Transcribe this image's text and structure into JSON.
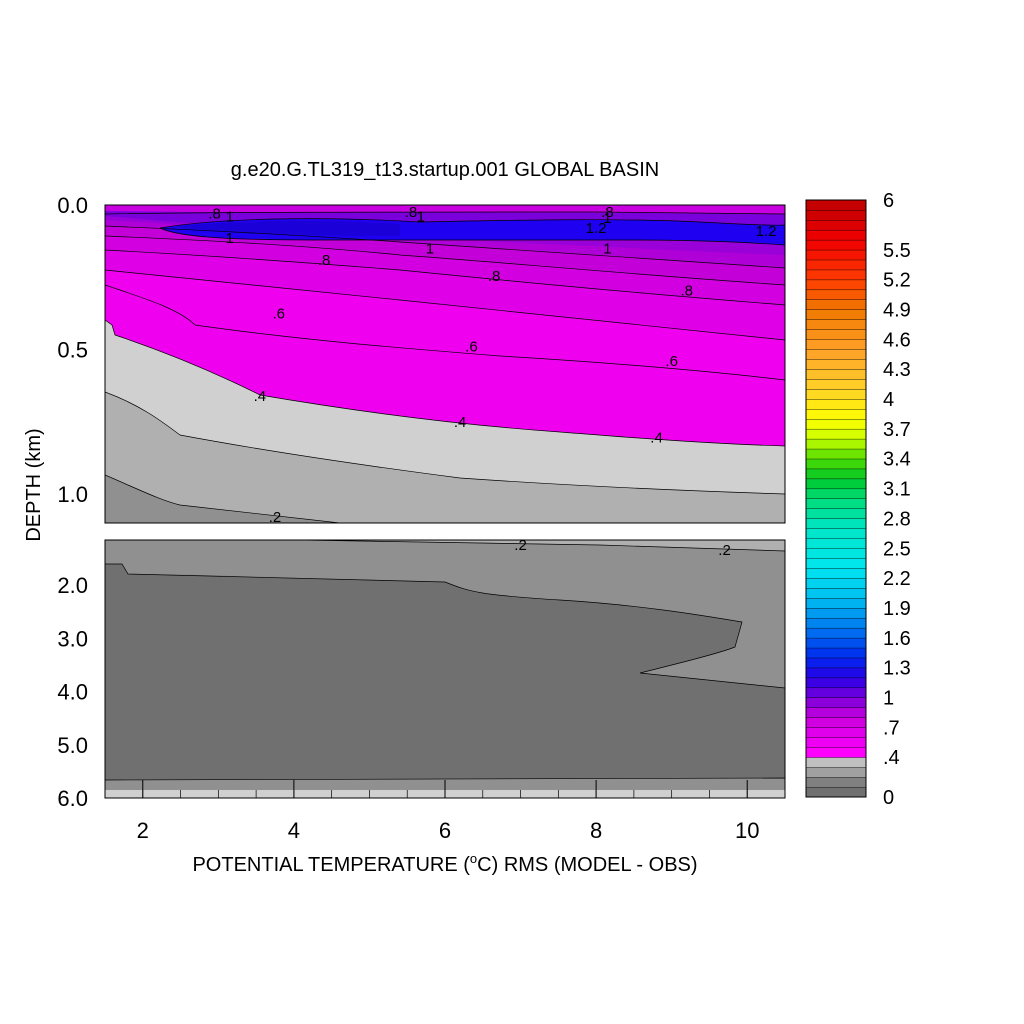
{
  "chart_data": {
    "type": "contour",
    "title": "g.e20.G.TL319_t13.startup.001 GLOBAL BASIN",
    "xlabel_pre": "POTENTIAL TEMPERATURE (",
    "xlabel_sup": "o",
    "xlabel_post": "C) RMS (MODEL - OBS)",
    "ylabel": "DEPTH (km)",
    "x_range": [
      1.5,
      10.5
    ],
    "x_ticks": [
      "2",
      "4",
      "6",
      "8",
      "10"
    ],
    "upper_panel": {
      "depth_range_km": [
        0.0,
        1.1
      ],
      "y_ticks": [
        "0.0",
        "0.5",
        "1.0"
      ],
      "contour_labels": [
        {
          "text": ".8",
          "x": 2.95,
          "d": 0.03
        },
        {
          "text": "1",
          "x": 3.15,
          "d": 0.04
        },
        {
          "text": ".8",
          "x": 5.55,
          "d": 0.025
        },
        {
          "text": "1",
          "x": 5.68,
          "d": 0.04
        },
        {
          "text": ".8",
          "x": 8.15,
          "d": 0.025
        },
        {
          "text": "1",
          "x": 8.15,
          "d": 0.045
        },
        {
          "text": "1.2",
          "x": 8.0,
          "d": 0.08
        },
        {
          "text": "1.2",
          "x": 10.25,
          "d": 0.09
        },
        {
          "text": "1",
          "x": 3.15,
          "d": 0.115
        },
        {
          "text": "1",
          "x": 5.8,
          "d": 0.15
        },
        {
          "text": "1",
          "x": 8.15,
          "d": 0.15
        },
        {
          "text": ".8",
          "x": 4.4,
          "d": 0.19
        },
        {
          "text": ".8",
          "x": 6.65,
          "d": 0.245
        },
        {
          "text": ".8",
          "x": 9.2,
          "d": 0.295
        },
        {
          "text": ".6",
          "x": 3.8,
          "d": 0.375
        },
        {
          "text": ".6",
          "x": 6.35,
          "d": 0.49
        },
        {
          "text": ".6",
          "x": 9.0,
          "d": 0.54
        },
        {
          "text": ".4",
          "x": 3.55,
          "d": 0.66
        },
        {
          "text": ".4",
          "x": 6.2,
          "d": 0.75
        },
        {
          "text": ".4",
          "x": 8.8,
          "d": 0.805
        },
        {
          "text": ".2",
          "x": 3.75,
          "d": 1.08
        }
      ]
    },
    "lower_panel": {
      "depth_range_km": [
        1.1,
        6.0
      ],
      "y_ticks": [
        "2.0",
        "3.0",
        "4.0",
        "5.0",
        "6.0"
      ],
      "contour_labels": [
        {
          "text": ".2",
          "x": 7.0,
          "d": 1.2
        },
        {
          "text": ".2",
          "x": 9.7,
          "d": 1.3
        }
      ]
    },
    "colorbar": {
      "levels_min": 0,
      "levels_max": 6,
      "ticks": [
        "6",
        "5.5",
        "5.2",
        "4.9",
        "4.6",
        "4.3",
        "4",
        "3.7",
        "3.4",
        "3.1",
        "2.8",
        "2.5",
        "2.2",
        "1.9",
        "1.6",
        "1.3",
        "1",
        ".7",
        ".4",
        "0"
      ]
    }
  }
}
